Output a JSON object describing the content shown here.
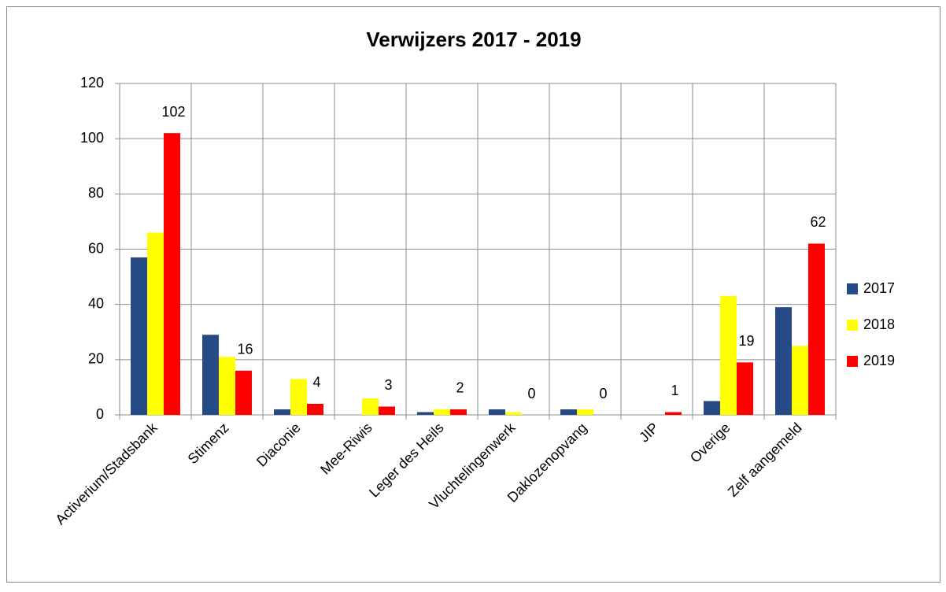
{
  "chart_data": {
    "type": "bar",
    "title": "Verwijzers 2017 - 2019",
    "categories": [
      "Activerium/Stadsbank",
      "Stimenz",
      "Diaconie",
      "Mee-Riwis",
      "Leger des Heils",
      "Vluchtelingenwerk",
      "Daklozenopvang",
      "JIP",
      "Overige",
      "Zelf aangemeld"
    ],
    "series": [
      {
        "name": "2017",
        "color": "#254a85",
        "values": [
          57,
          29,
          2,
          0,
          1,
          2,
          2,
          0,
          5,
          39
        ]
      },
      {
        "name": "2018",
        "color": "#ffff00",
        "values": [
          66,
          21,
          13,
          6,
          2,
          1,
          2,
          0,
          43,
          25
        ]
      },
      {
        "name": "2019",
        "color": "#ff0000",
        "values": [
          102,
          16,
          4,
          3,
          2,
          0,
          0,
          1,
          19,
          62
        ],
        "data_labels": true
      }
    ],
    "ylim": [
      0,
      120
    ],
    "yticks": [
      0,
      20,
      40,
      60,
      80,
      100,
      120
    ],
    "grid": true,
    "legend": "right"
  }
}
